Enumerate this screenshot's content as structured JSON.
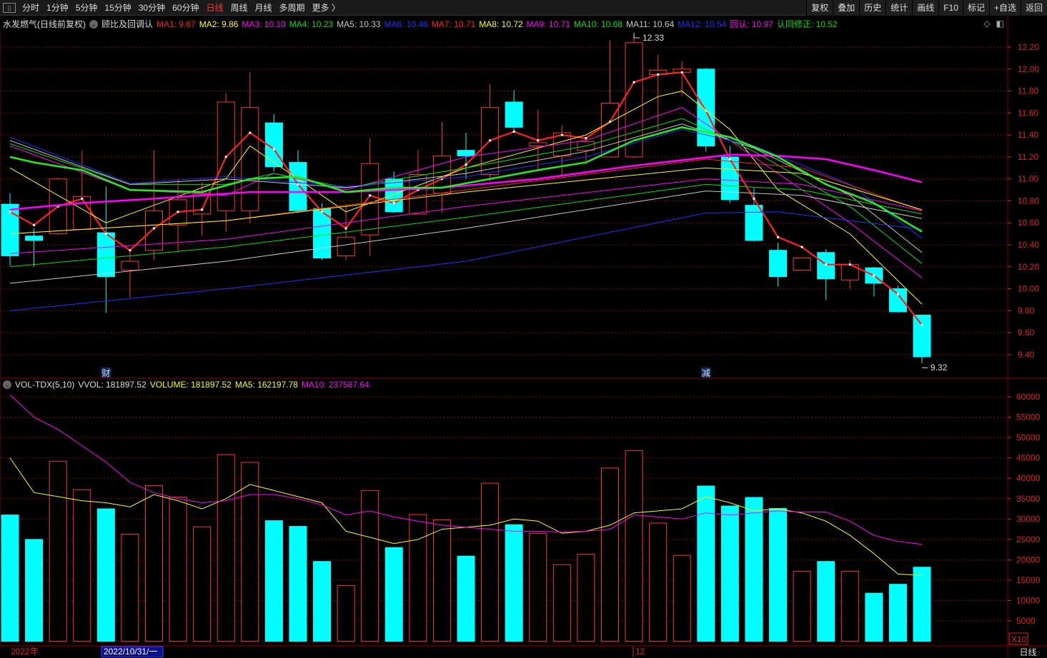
{
  "toolbar": {
    "left": [
      "分时",
      "1分钟",
      "5分钟",
      "15分钟",
      "30分钟",
      "60分钟",
      "日线",
      "周线",
      "月线",
      "多周期",
      "更多 〉"
    ],
    "active": "日线",
    "right": [
      "复权",
      "叠加",
      "历史",
      "统计",
      "画线",
      "F10",
      "标记",
      "+自选",
      "返回"
    ]
  },
  "legend": {
    "title": "水发燃气(日线前复权)",
    "indicator": "顾比及回调认",
    "items": [
      {
        "label": "MA1: 9.67",
        "color": "#ff2020"
      },
      {
        "label": "MA2: 9.86",
        "color": "#ffff00"
      },
      {
        "label": "MA3: 10.10",
        "color": "#ff00ff"
      },
      {
        "label": "MA4: 10.23",
        "color": "#00e000"
      },
      {
        "label": "MA5: 10.33",
        "color": "#c8c8c8"
      },
      {
        "label": "MA6: 10.46",
        "color": "#2030ff"
      },
      {
        "label": "MA7: 10.71",
        "color": "#ff2020"
      },
      {
        "label": "MA8: 10.72",
        "color": "#ffff00"
      },
      {
        "label": "MA9: 10.71",
        "color": "#ff00ff"
      },
      {
        "label": "MA10: 10.68",
        "color": "#00e000"
      },
      {
        "label": "MA11: 10.64",
        "color": "#c8c8c8"
      },
      {
        "label": "MA12: 10.54",
        "color": "#2030ff"
      },
      {
        "label": "回认: 10.97",
        "color": "#ff00ff"
      },
      {
        "label": "认同修正: 10.52",
        "color": "#00e000"
      }
    ]
  },
  "vol_legend": {
    "title": "VOL-TDX(5,10)",
    "items": [
      {
        "label": "VVOL: 181897.52",
        "color": "#dddddd"
      },
      {
        "label": "VOLUME: 181897.52",
        "color": "#ffff00"
      },
      {
        "label": "MA5: 162197.78",
        "color": "#ffff00"
      },
      {
        "label": "MA10: 237587.64",
        "color": "#ff00ff"
      }
    ]
  },
  "colors": {
    "up": "#ff3333",
    "down": "#00ffff",
    "grid": "#8b0000",
    "axis": "#e02020"
  },
  "chart_data": [
    {
      "type": "candlestick",
      "ylim": [
        9.3,
        12.35
      ],
      "yticks": [
        "12.20",
        "12.00",
        "11.80",
        "11.60",
        "11.40",
        "11.20",
        "11.00",
        "10.80",
        "10.60",
        "10.40",
        "10.20",
        "10.00",
        "9.80",
        "9.60",
        "9.40"
      ],
      "ohlc": [
        [
          10.77,
          10.87,
          10.21,
          10.3
        ],
        [
          10.48,
          10.55,
          10.2,
          10.44
        ],
        [
          10.5,
          11.01,
          10.49,
          11.0
        ],
        [
          10.54,
          11.26,
          10.54,
          10.84
        ],
        [
          10.51,
          10.93,
          9.78,
          10.11
        ],
        [
          10.17,
          10.35,
          9.92,
          10.25
        ],
        [
          10.35,
          11.26,
          10.26,
          10.71
        ],
        [
          10.58,
          11.0,
          10.33,
          10.81
        ],
        [
          10.68,
          10.97,
          10.48,
          10.87
        ],
        [
          10.71,
          11.78,
          10.52,
          11.7
        ],
        [
          10.71,
          11.97,
          10.6,
          11.65
        ],
        [
          11.51,
          11.59,
          11.07,
          11.11
        ],
        [
          11.15,
          11.26,
          10.69,
          10.71
        ],
        [
          10.73,
          10.78,
          10.26,
          10.28
        ],
        [
          10.3,
          10.75,
          10.26,
          10.47
        ],
        [
          10.49,
          11.37,
          10.3,
          11.14
        ],
        [
          11.0,
          11.07,
          10.69,
          10.7
        ],
        [
          10.68,
          11.26,
          10.68,
          11.04
        ],
        [
          10.87,
          11.52,
          10.69,
          11.21
        ],
        [
          11.26,
          11.42,
          11.0,
          11.21
        ],
        [
          11.04,
          11.86,
          10.98,
          11.65
        ],
        [
          11.7,
          11.81,
          11.42,
          11.47
        ],
        [
          11.3,
          11.63,
          11.07,
          11.33
        ],
        [
          11.21,
          11.49,
          11.03,
          11.42
        ],
        [
          11.26,
          11.38,
          11.13,
          11.34
        ],
        [
          11.2,
          12.26,
          11.2,
          11.69
        ],
        [
          11.2,
          12.33,
          11.19,
          12.24
        ],
        [
          11.95,
          12.13,
          11.45,
          11.99
        ],
        [
          11.97,
          12.07,
          11.76,
          12.0
        ],
        [
          12.0,
          12.01,
          11.25,
          11.3
        ],
        [
          11.2,
          11.3,
          10.78,
          10.81
        ],
        [
          10.76,
          10.92,
          10.43,
          10.44
        ],
        [
          10.35,
          10.42,
          10.02,
          10.11
        ],
        [
          10.17,
          10.28,
          10.17,
          10.28
        ],
        [
          10.33,
          10.36,
          9.9,
          10.09
        ],
        [
          10.08,
          10.26,
          10.0,
          10.22
        ],
        [
          10.19,
          10.2,
          9.93,
          10.05
        ],
        [
          10.0,
          10.03,
          9.78,
          9.79
        ],
        [
          9.76,
          9.76,
          9.32,
          9.38
        ]
      ],
      "annotations": [
        {
          "text": "12.33",
          "index": 26,
          "value": 12.33
        },
        {
          "text": "9.32",
          "index": 38,
          "value": 9.32
        }
      ],
      "markers": [
        {
          "text": "财",
          "index": 4
        },
        {
          "text": "减",
          "index": 29
        }
      ],
      "lines": [
        {
          "name": "MA1",
          "color": "#ff2020",
          "width": 2.2,
          "values": [
            10.7,
            10.58,
            10.75,
            10.82,
            10.5,
            10.35,
            10.55,
            10.7,
            10.72,
            11.2,
            11.42,
            11.27,
            10.95,
            10.7,
            10.55,
            10.85,
            10.78,
            10.9,
            11.0,
            11.13,
            11.35,
            11.43,
            11.35,
            11.4,
            11.37,
            11.52,
            11.88,
            11.95,
            11.97,
            11.62,
            11.18,
            10.82,
            10.47,
            10.38,
            10.22,
            10.22,
            10.12,
            9.95,
            9.67
          ]
        },
        {
          "name": "MA2",
          "color": "#ffff00",
          "width": 1,
          "points": [
            [
              0,
              11.1
            ],
            [
              4,
              10.6
            ],
            [
              9,
              11.0
            ],
            [
              10,
              11.3
            ],
            [
              12,
              11.0
            ],
            [
              14,
              10.7
            ],
            [
              19,
              11.1
            ],
            [
              24,
              11.4
            ],
            [
              27,
              11.75
            ],
            [
              28,
              11.8
            ],
            [
              30,
              11.45
            ],
            [
              32,
              10.9
            ],
            [
              35,
              10.5
            ],
            [
              38,
              9.86
            ]
          ]
        },
        {
          "name": "MA3",
          "color": "#ff00ff",
          "width": 1,
          "points": [
            [
              0,
              11.3
            ],
            [
              5,
              10.9
            ],
            [
              9,
              10.85
            ],
            [
              11,
              11.05
            ],
            [
              14,
              10.9
            ],
            [
              19,
              11.2
            ],
            [
              24,
              11.35
            ],
            [
              28,
              11.65
            ],
            [
              31,
              11.2
            ],
            [
              35,
              10.6
            ],
            [
              38,
              10.1
            ]
          ]
        },
        {
          "name": "MA4",
          "color": "#00e000",
          "width": 1,
          "points": [
            [
              0,
              11.32
            ],
            [
              5,
              10.95
            ],
            [
              9,
              10.95
            ],
            [
              11,
              11.05
            ],
            [
              14,
              10.92
            ],
            [
              19,
              11.1
            ],
            [
              24,
              11.3
            ],
            [
              28,
              11.55
            ],
            [
              31,
              11.25
            ],
            [
              35,
              10.75
            ],
            [
              38,
              10.23
            ]
          ]
        },
        {
          "name": "MA5",
          "color": "#c8c8c8",
          "width": 1,
          "points": [
            [
              0,
              11.35
            ],
            [
              5,
              10.95
            ],
            [
              9,
              11.0
            ],
            [
              14,
              10.92
            ],
            [
              19,
              11.05
            ],
            [
              24,
              11.25
            ],
            [
              28,
              11.5
            ],
            [
              31,
              11.28
            ],
            [
              35,
              10.85
            ],
            [
              38,
              10.33
            ]
          ]
        },
        {
          "name": "MA6",
          "color": "#2030ff",
          "width": 1,
          "points": [
            [
              0,
              11.38
            ],
            [
              5,
              10.96
            ],
            [
              9,
              11.02
            ],
            [
              14,
              10.93
            ],
            [
              19,
              11.02
            ],
            [
              24,
              11.2
            ],
            [
              28,
              11.45
            ],
            [
              31,
              11.3
            ],
            [
              35,
              10.95
            ],
            [
              38,
              10.46
            ]
          ]
        },
        {
          "name": "MA7",
          "color": "#ff2020",
          "width": 1,
          "points": [
            [
              0,
              10.5
            ],
            [
              9,
              10.62
            ],
            [
              19,
              10.9
            ],
            [
              29,
              11.18
            ],
            [
              33,
              11.1
            ],
            [
              38,
              10.71
            ]
          ]
        },
        {
          "name": "MA8",
          "color": "#ffff00",
          "width": 1,
          "points": [
            [
              0,
              10.5
            ],
            [
              9,
              10.62
            ],
            [
              19,
              10.88
            ],
            [
              29,
              11.1
            ],
            [
              33,
              11.05
            ],
            [
              38,
              10.72
            ]
          ]
        },
        {
          "name": "MA9",
          "color": "#ff00ff",
          "width": 1,
          "points": [
            [
              0,
              10.32
            ],
            [
              9,
              10.45
            ],
            [
              19,
              10.75
            ],
            [
              29,
              11.0
            ],
            [
              33,
              10.95
            ],
            [
              38,
              10.71
            ]
          ]
        },
        {
          "name": "MA10",
          "color": "#00e000",
          "width": 1,
          "points": [
            [
              0,
              10.2
            ],
            [
              9,
              10.38
            ],
            [
              19,
              10.65
            ],
            [
              29,
              10.95
            ],
            [
              33,
              10.9
            ],
            [
              38,
              10.68
            ]
          ]
        },
        {
          "name": "MA11",
          "color": "#c8c8c8",
          "width": 1,
          "points": [
            [
              0,
              10.05
            ],
            [
              9,
              10.25
            ],
            [
              19,
              10.55
            ],
            [
              29,
              10.89
            ],
            [
              33,
              10.85
            ],
            [
              38,
              10.64
            ]
          ]
        },
        {
          "name": "MA12",
          "color": "#2030ff",
          "width": 1,
          "points": [
            [
              0,
              9.8
            ],
            [
              9,
              10.0
            ],
            [
              19,
              10.25
            ],
            [
              29,
              10.69
            ],
            [
              32,
              10.7
            ],
            [
              38,
              10.54
            ]
          ]
        },
        {
          "name": "回认",
          "color": "#ff00ff",
          "width": 2.5,
          "points": [
            [
              0,
              10.72
            ],
            [
              3,
              10.78
            ],
            [
              6,
              10.82
            ],
            [
              10,
              10.88
            ],
            [
              14,
              10.88
            ],
            [
              18,
              10.92
            ],
            [
              22,
              11.0
            ],
            [
              26,
              11.12
            ],
            [
              30,
              11.22
            ],
            [
              32,
              11.21
            ],
            [
              34,
              11.18
            ],
            [
              36,
              11.08
            ],
            [
              38,
              10.97
            ]
          ]
        },
        {
          "name": "认同修正",
          "color": "#22ee22",
          "width": 2.5,
          "points": [
            [
              0,
              11.2
            ],
            [
              1,
              11.15
            ],
            [
              3,
              11.08
            ],
            [
              5,
              10.9
            ],
            [
              8,
              10.88
            ],
            [
              10,
              11.0
            ],
            [
              12,
              11.02
            ],
            [
              14,
              10.88
            ],
            [
              16,
              10.92
            ],
            [
              18,
              10.92
            ],
            [
              20,
              11.0
            ],
            [
              22,
              11.08
            ],
            [
              24,
              11.15
            ],
            [
              26,
              11.35
            ],
            [
              28,
              11.47
            ],
            [
              30,
              11.38
            ],
            [
              32,
              11.2
            ],
            [
              34,
              10.95
            ],
            [
              36,
              10.78
            ],
            [
              38,
              10.52
            ]
          ]
        }
      ]
    },
    {
      "type": "bar",
      "ylim": [
        0,
        63000
      ],
      "yticks": [
        "60000",
        "55000",
        "50000",
        "45000",
        "40000",
        "35000",
        "30000",
        "25000",
        "20000",
        "15000",
        "10000",
        "5000"
      ],
      "scale_label": "X10",
      "values": [
        31000,
        25000,
        44200,
        37200,
        32500,
        26300,
        38200,
        35400,
        28100,
        45800,
        43900,
        29600,
        28200,
        19600,
        13700,
        37000,
        23000,
        31100,
        29800,
        20900,
        38800,
        28600,
        26500,
        18800,
        21400,
        42500,
        46800,
        29000,
        21100,
        38100,
        33200,
        35300,
        32600,
        17200,
        19600,
        17200,
        11800,
        14000,
        18190
      ],
      "ma5": [
        45000,
        36500,
        35500,
        34500,
        34000,
        33000,
        36000,
        34500,
        32500,
        35000,
        38500,
        37000,
        35500,
        34000,
        27000,
        25500,
        24000,
        25000,
        27500,
        28000,
        28500,
        30000,
        29500,
        26500,
        27000,
        28500,
        31500,
        32000,
        32500,
        35500,
        34000,
        32000,
        32500,
        31500,
        29500,
        26000,
        21500,
        16500,
        16200
      ],
      "ma10": [
        60500,
        55000,
        52000,
        48000,
        44000,
        39000,
        36500,
        35000,
        34000,
        34500,
        36000,
        36000,
        35000,
        33500,
        31000,
        32000,
        30500,
        29500,
        28500,
        28000,
        27500,
        27000,
        27000,
        26800,
        27000,
        27500,
        31000,
        30500,
        30000,
        31500,
        31000,
        31500,
        32000,
        31700,
        31700,
        29500,
        26000,
        24500,
        23800
      ]
    }
  ],
  "time_axis": {
    "year": "2022年",
    "cursor": "2022/10/31/一",
    "month": "12"
  },
  "period_label": "日线"
}
